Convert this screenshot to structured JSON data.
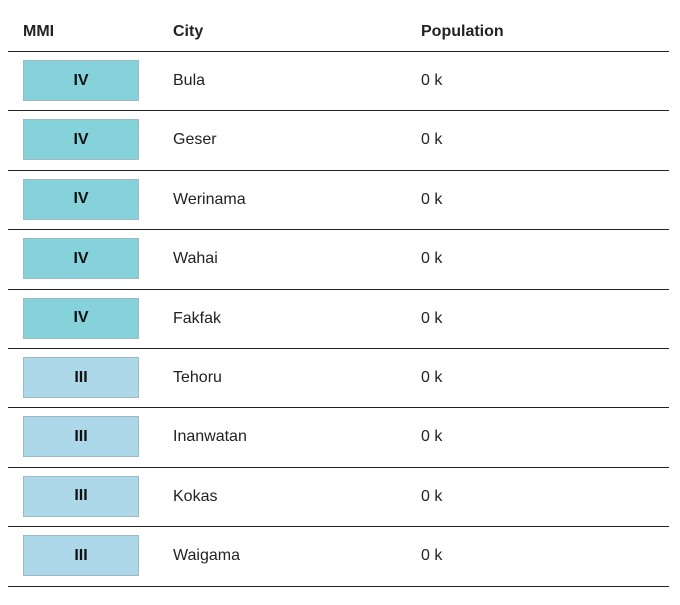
{
  "table": {
    "headers": [
      "MMI",
      "City",
      "Population"
    ],
    "rows": [
      {
        "mmi": "IV",
        "city": "Bula",
        "population": "0 k",
        "color": "#86d2db"
      },
      {
        "mmi": "IV",
        "city": "Geser",
        "population": "0 k",
        "color": "#86d2db"
      },
      {
        "mmi": "IV",
        "city": "Werinama",
        "population": "0 k",
        "color": "#86d2db"
      },
      {
        "mmi": "IV",
        "city": "Wahai",
        "population": "0 k",
        "color": "#86d2db"
      },
      {
        "mmi": "IV",
        "city": "Fakfak",
        "population": "0 k",
        "color": "#86d2db"
      },
      {
        "mmi": "III",
        "city": "Tehoru",
        "population": "0 k",
        "color": "#acd8e9"
      },
      {
        "mmi": "III",
        "city": "Inanwatan",
        "population": "0 k",
        "color": "#acd8e9"
      },
      {
        "mmi": "III",
        "city": "Kokas",
        "population": "0 k",
        "color": "#acd8e9"
      },
      {
        "mmi": "III",
        "city": "Waigama",
        "population": "0 k",
        "color": "#acd8e9"
      }
    ]
  }
}
